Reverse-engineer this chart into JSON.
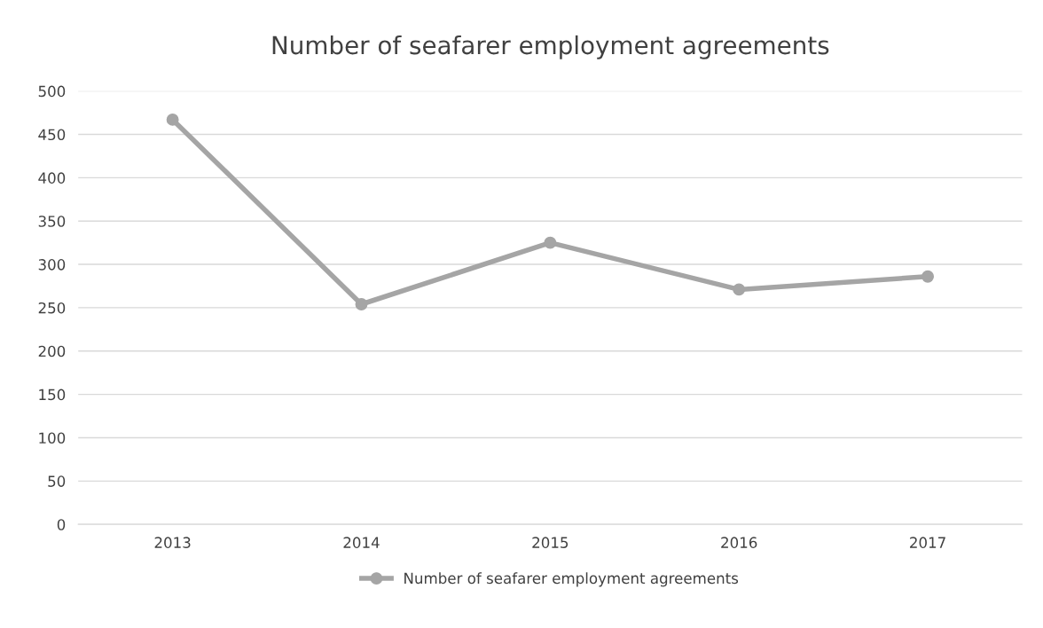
{
  "chart_data": {
    "type": "line",
    "title": "Number of seafarer employment agreements",
    "categories": [
      "2013",
      "2014",
      "2015",
      "2016",
      "2017"
    ],
    "series": [
      {
        "name": "Number of seafarer employment agreements",
        "color": "#a5a5a5",
        "values": [
          467,
          254,
          325,
          271,
          286
        ]
      }
    ],
    "ylim": [
      0,
      500
    ],
    "yticks": [
      0,
      50,
      100,
      150,
      200,
      250,
      300,
      350,
      400,
      450,
      500
    ],
    "grid": "y",
    "legend": "bottom",
    "marker": "circle",
    "line_style": "solid"
  }
}
